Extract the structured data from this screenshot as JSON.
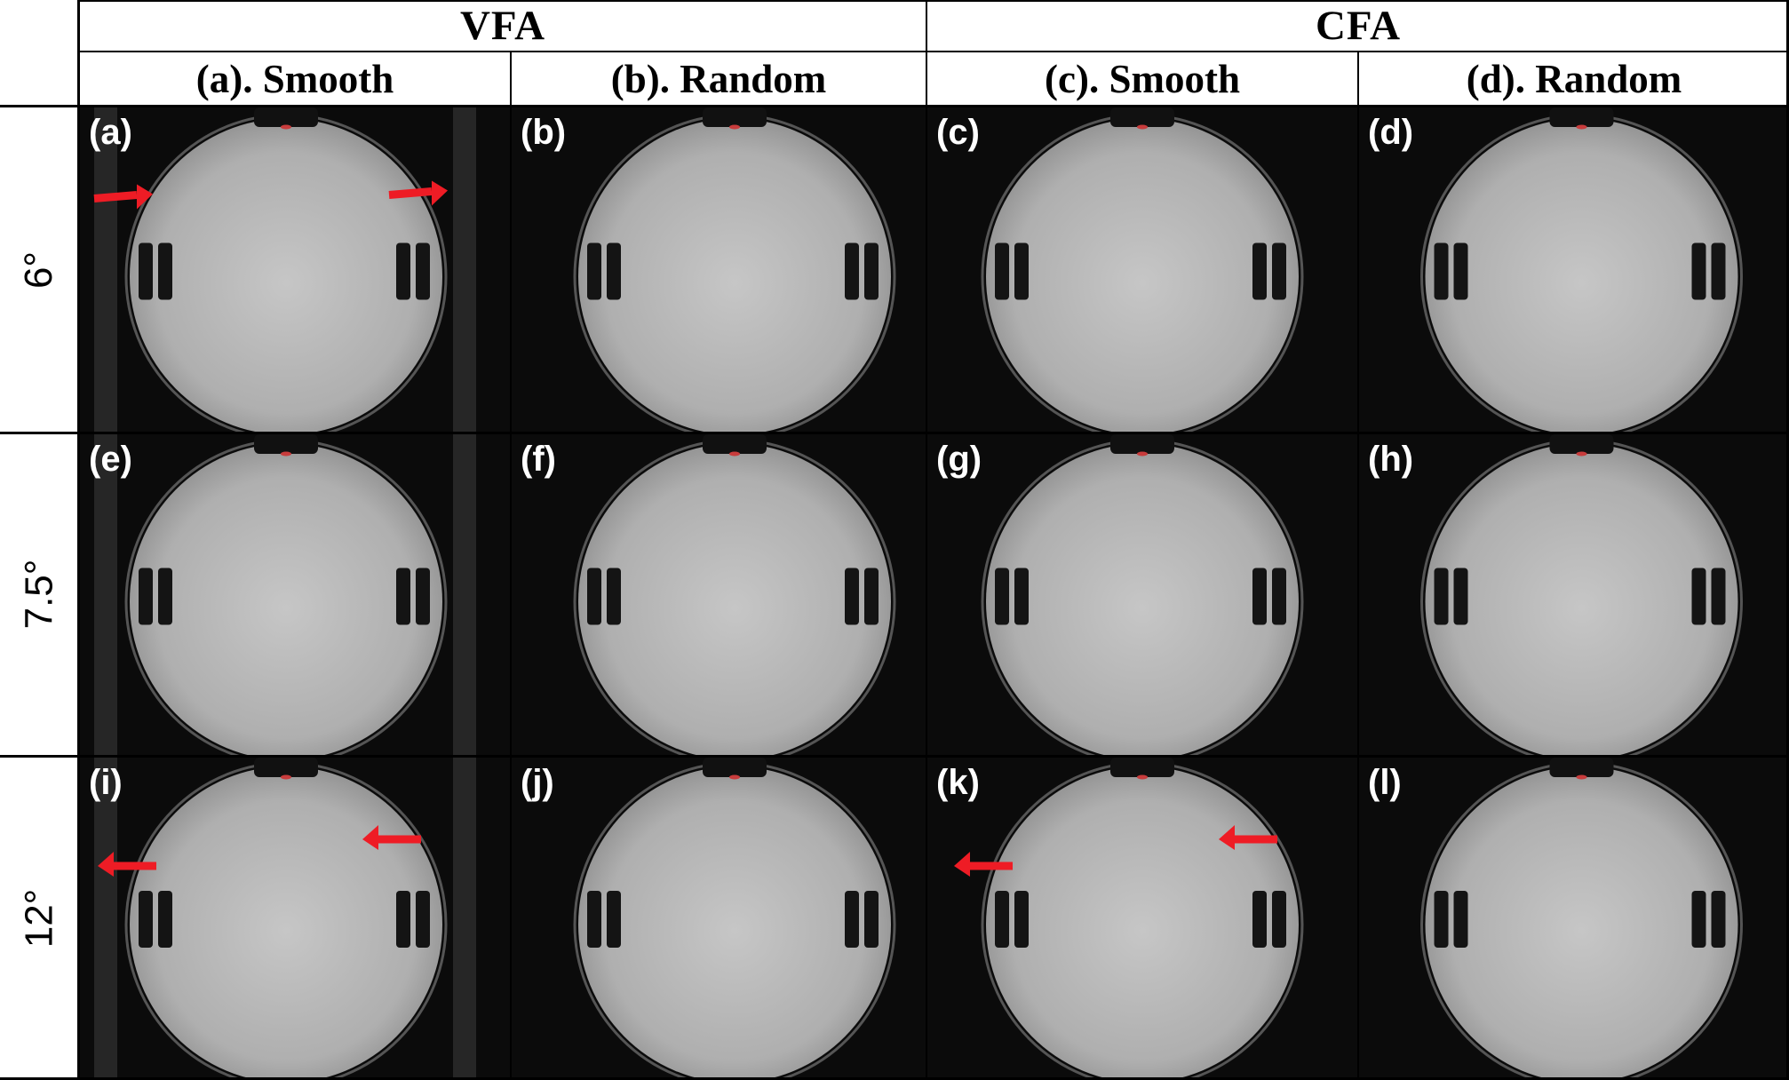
{
  "groups": [
    "VFA",
    "CFA"
  ],
  "columns": [
    "(a). Smooth",
    "(b). Random",
    "(c). Smooth",
    "(d). Random"
  ],
  "rows": [
    "6°",
    "7.5°",
    "12°"
  ],
  "panels": [
    {
      "label": "(a)",
      "arrows": "right"
    },
    {
      "label": "(b)",
      "arrows": "none"
    },
    {
      "label": "(c)",
      "arrows": "none"
    },
    {
      "label": "(d)",
      "arrows": "none"
    },
    {
      "label": "(e)",
      "arrows": "none"
    },
    {
      "label": "(f)",
      "arrows": "none"
    },
    {
      "label": "(g)",
      "arrows": "none"
    },
    {
      "label": "(h)",
      "arrows": "none"
    },
    {
      "label": "(i)",
      "arrows": "left"
    },
    {
      "label": "(j)",
      "arrows": "none"
    },
    {
      "label": "(k)",
      "arrows": "left"
    },
    {
      "label": "(l)",
      "arrows": "none"
    }
  ],
  "colors": {
    "arrow": "#ee1c25",
    "phantom": "#b9b9b9",
    "background": "#0b0b0b"
  }
}
